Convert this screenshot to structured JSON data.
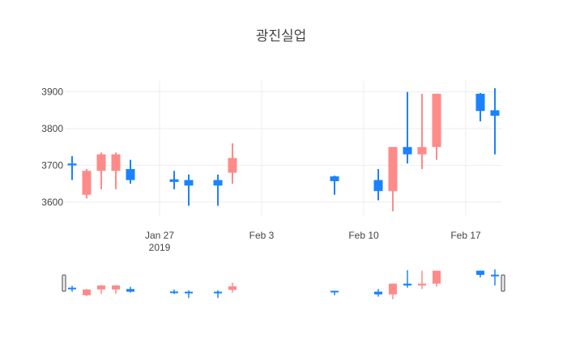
{
  "chart_data": {
    "type": "candlestick",
    "title": "광진실업",
    "xlabel": "",
    "ylabel": "",
    "ylim": [
      3560,
      3930
    ],
    "xlim": [
      "2019-01-21",
      "2019-02-19"
    ],
    "grid": true,
    "range_slider": true,
    "increasing_color": "#ff8a8a",
    "decreasing_color": "#1a82ff",
    "y_ticks": [
      "3600",
      "3700",
      "3800",
      "3900"
    ],
    "x_ticks": [
      {
        "date": "2019-01-27",
        "label": "Jan 27",
        "sublabel": "2019"
      },
      {
        "date": "2019-02-03",
        "label": "Feb 3",
        "sublabel": ""
      },
      {
        "date": "2019-02-10",
        "label": "Feb 10",
        "sublabel": ""
      },
      {
        "date": "2019-02-17",
        "label": "Feb 17",
        "sublabel": ""
      }
    ],
    "candles": [
      {
        "date": "2019-01-21",
        "open": 3705,
        "high": 3725,
        "low": 3660,
        "close": 3700
      },
      {
        "date": "2019-01-22",
        "open": 3620,
        "high": 3690,
        "low": 3610,
        "close": 3685
      },
      {
        "date": "2019-01-23",
        "open": 3685,
        "high": 3735,
        "low": 3635,
        "close": 3730
      },
      {
        "date": "2019-01-24",
        "open": 3685,
        "high": 3735,
        "low": 3635,
        "close": 3730
      },
      {
        "date": "2019-01-25",
        "open": 3690,
        "high": 3715,
        "low": 3650,
        "close": 3660
      },
      {
        "date": "2019-01-28",
        "open": 3662,
        "high": 3685,
        "low": 3635,
        "close": 3655
      },
      {
        "date": "2019-01-29",
        "open": 3660,
        "high": 3675,
        "low": 3590,
        "close": 3645
      },
      {
        "date": "2019-01-31",
        "open": 3660,
        "high": 3675,
        "low": 3590,
        "close": 3645
      },
      {
        "date": "2019-02-01",
        "open": 3680,
        "high": 3760,
        "low": 3650,
        "close": 3720
      },
      {
        "date": "2019-02-08",
        "open": 3670,
        "high": 3672,
        "low": 3620,
        "close": 3657
      },
      {
        "date": "2019-02-11",
        "open": 3660,
        "high": 3690,
        "low": 3605,
        "close": 3630
      },
      {
        "date": "2019-02-12",
        "open": 3630,
        "high": 3750,
        "low": 3575,
        "close": 3750
      },
      {
        "date": "2019-02-13",
        "open": 3750,
        "high": 3900,
        "low": 3705,
        "close": 3730
      },
      {
        "date": "2019-02-14",
        "open": 3730,
        "high": 3895,
        "low": 3690,
        "close": 3750
      },
      {
        "date": "2019-02-15",
        "open": 3750,
        "high": 3895,
        "low": 3715,
        "close": 3895
      },
      {
        "date": "2019-02-18",
        "open": 3895,
        "high": 3897,
        "low": 3820,
        "close": 3848
      },
      {
        "date": "2019-02-19",
        "open": 3850,
        "high": 3910,
        "low": 3730,
        "close": 3835
      }
    ]
  }
}
